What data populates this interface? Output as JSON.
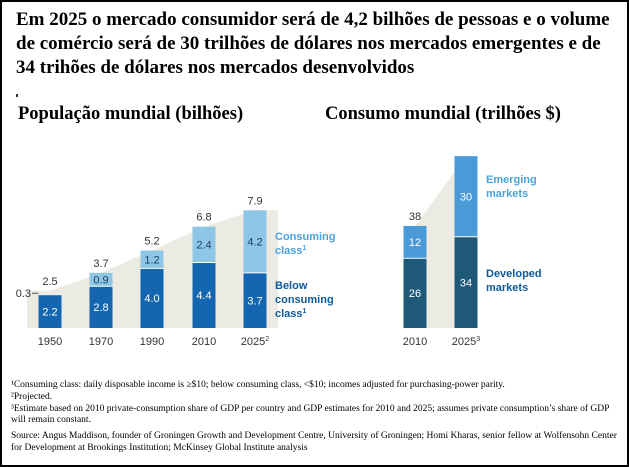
{
  "headline": "Em 2025 o mercado consumidor será de 4,2 bilhões de pessoas e o volume de comércio será de 30 trilhões de dólares nos mercados emergentes e de 34 trihões de dólares nos mercados desenvolvidos",
  "colors": {
    "below": "#1566b0",
    "consuming": "#8ec6e6",
    "developed": "#1e5a78",
    "emerging": "#4b9ad8",
    "fill_area": "#ecebe3",
    "label_light": "#4ba3d9",
    "label_dark": "#0e5a9a"
  },
  "chart_data": [
    {
      "type": "bar",
      "title": "População mundial (bilhões)",
      "categories": [
        "1950",
        "1970",
        "1990",
        "2010",
        "2025"
      ],
      "category_superscripts": [
        "",
        "",
        "",
        "",
        "2"
      ],
      "series": [
        {
          "name": "Below consuming class",
          "footnote": "1",
          "values": [
            2.2,
            2.8,
            4.0,
            4.4,
            3.7
          ]
        },
        {
          "name": "Consuming class",
          "footnote": "1",
          "values": [
            0.3,
            0.9,
            1.2,
            2.4,
            4.2
          ]
        }
      ],
      "totals": [
        2.5,
        3.7,
        5.2,
        6.8,
        7.9
      ],
      "stacked": true
    },
    {
      "type": "bar",
      "title": "Consumo mundial (trilhões $)",
      "categories": [
        "2010",
        "2025"
      ],
      "category_superscripts": [
        "",
        "3"
      ],
      "series": [
        {
          "name": "Developed markets",
          "values": [
            26,
            34
          ]
        },
        {
          "name": "Emerging markets",
          "values": [
            12,
            30
          ]
        }
      ],
      "totals": [
        38,
        null
      ],
      "stacked": true
    }
  ],
  "labels": {
    "consuming_1": "Consuming",
    "consuming_2": "class",
    "below_1": "Below",
    "below_2": "consuming",
    "below_3": "class",
    "sup1": "1",
    "emerging_1": "Emerging",
    "emerging_2": "markets",
    "developed_1": "Developed",
    "developed_2": "markets"
  },
  "footnotes": [
    "¹Consuming class: daily disposable income is ≥$10; below consuming class, <$10; incomes adjusted for purchasing-power parity.",
    "²Projected.",
    "³Estimate based on 2010 private-consumption share of GDP per country and GDP estimates for 2010 and 2025; assumes private consumption’s share of GDP will remain constant."
  ],
  "source": "Source: Angus Maddison, founder of Groningen Growth and Development Centre, University of Groningen; Homi Kharas, senior fellow at Wolfensohn Center for Development at Brookings Institution; McKinsey Global Institute analysis"
}
